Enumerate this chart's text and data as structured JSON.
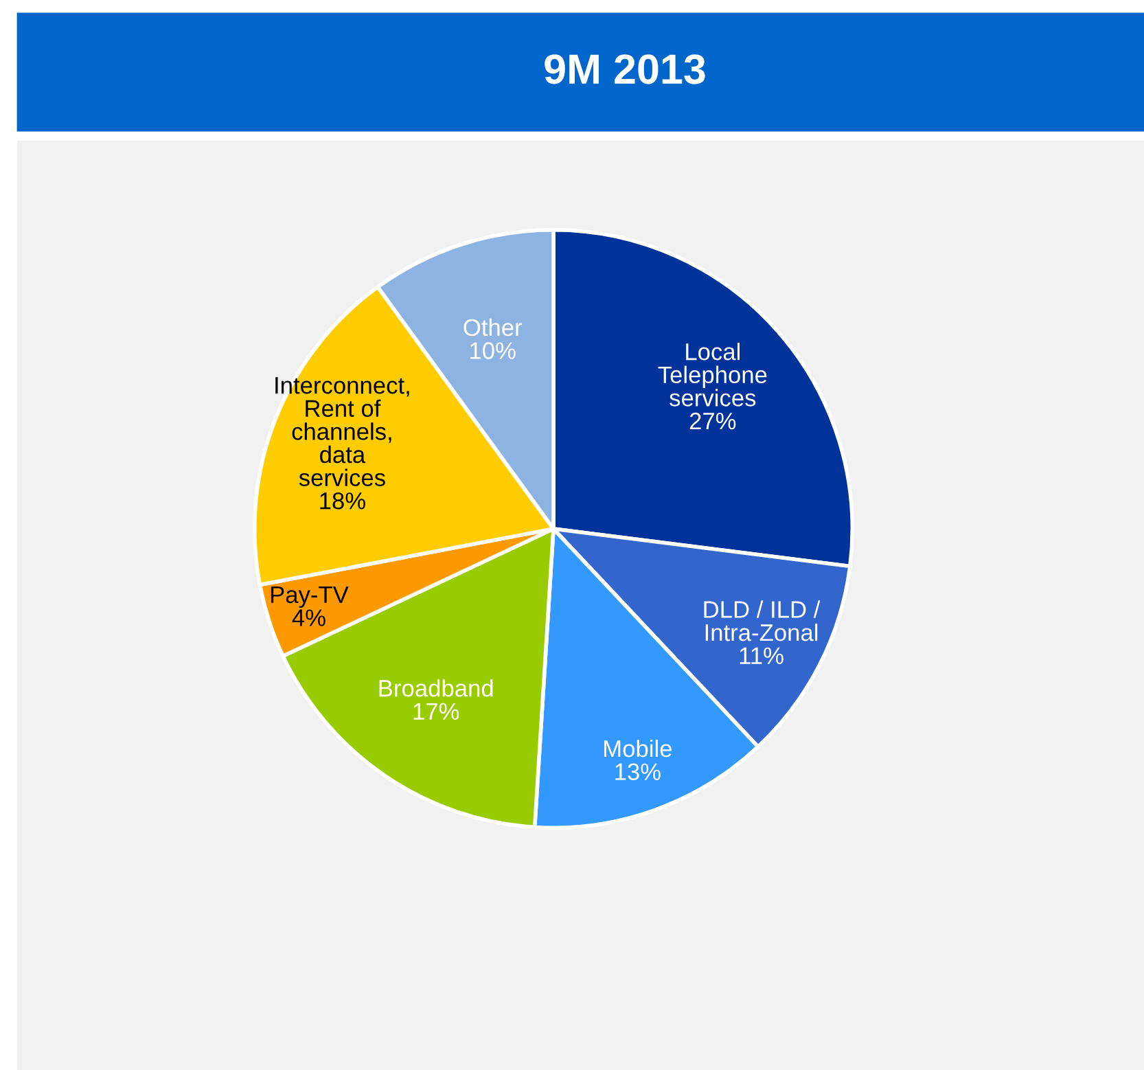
{
  "chart_data": {
    "type": "pie",
    "title": "9M 2013",
    "categories": [
      "Local\nTelephone\nservices",
      "DLD / ILD /\nIntra-Zonal",
      "Mobile",
      "Broadband",
      "Pay-TV",
      "Interconnect,\nRent of\nchannels,\ndata\nservices",
      "Other"
    ],
    "values": [
      27,
      11,
      13,
      17,
      4,
      18,
      10
    ],
    "value_labels": [
      "27%",
      "11%",
      "13%",
      "17%",
      "4%",
      "18%",
      "10%"
    ],
    "colors": [
      "#003399",
      "#3366cc",
      "#3399ff",
      "#99cc00",
      "#ff9900",
      "#ffcc00",
      "#8db3e2"
    ]
  }
}
